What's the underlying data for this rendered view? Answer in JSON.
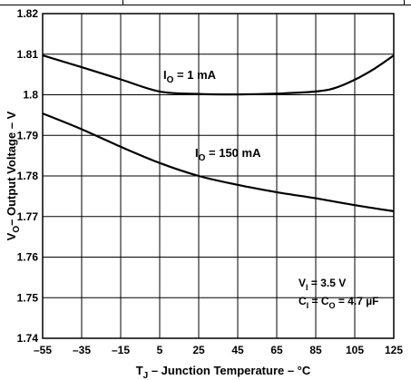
{
  "chart_data": {
    "type": "line",
    "xlabel": {
      "main": "T",
      "sub": "J",
      "rest": " – Junction Temperature – °C"
    },
    "ylabel": {
      "main": "V",
      "sub": "O",
      "rest": "– Output Voltage – V"
    },
    "xlim": [
      -55,
      125
    ],
    "ylim": [
      1.74,
      1.82
    ],
    "x_ticks": [
      "–55",
      "–35",
      "–15",
      "5",
      "25",
      "45",
      "65",
      "85",
      "105",
      "125"
    ],
    "y_ticks": [
      "1.82",
      "1.81",
      "1.8",
      "1.79",
      "1.78",
      "1.77",
      "1.76",
      "1.75",
      "1.74"
    ],
    "grid": true,
    "series": [
      {
        "name": "I_O = 1 mA",
        "x": [
          -55,
          -35,
          -15,
          5,
          25,
          45,
          65,
          85,
          95,
          105,
          115,
          125
        ],
        "y": [
          1.8097,
          1.8068,
          1.8038,
          1.8008,
          1.8002,
          1.8001,
          1.8003,
          1.8008,
          1.8017,
          1.8037,
          1.8064,
          1.8097
        ]
      },
      {
        "name": "I_O = 150 mA",
        "x": [
          -55,
          -35,
          -15,
          5,
          25,
          45,
          65,
          85,
          105,
          125
        ],
        "y": [
          1.7954,
          1.7915,
          1.7872,
          1.7832,
          1.78,
          1.7778,
          1.776,
          1.7745,
          1.7728,
          1.7713
        ]
      }
    ],
    "annotations": [
      {
        "main": "I",
        "sub": "O",
        "rest": " = 1 mA"
      },
      {
        "main": "I",
        "sub": "O",
        "rest": " = 150 mA"
      },
      {
        "main": "V",
        "sub": "I",
        "rest": " = 3.5 V"
      },
      {
        "parts": [
          "C",
          "I",
          " = C",
          "O",
          " = 4.7 µF"
        ]
      }
    ]
  }
}
